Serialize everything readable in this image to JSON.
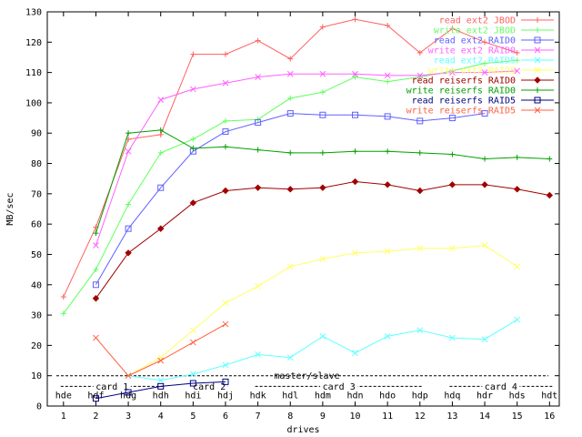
{
  "chart_data": {
    "type": "line",
    "xlabel": "drives",
    "ylabel": "MB/sec",
    "xlim": [
      0.5,
      16.3
    ],
    "ylim": [
      0,
      130
    ],
    "x_ticks": [
      1,
      2,
      3,
      4,
      5,
      6,
      7,
      8,
      9,
      10,
      11,
      12,
      13,
      14,
      15,
      16
    ],
    "y_ticks": [
      0,
      10,
      20,
      30,
      40,
      50,
      60,
      70,
      80,
      90,
      100,
      110,
      120,
      130
    ],
    "grid": false,
    "legend_position": "top-right",
    "top_labels": [
      "hde",
      "hdf",
      "hdg",
      "hdh",
      "hdi",
      "hdj",
      "hdk",
      "hdl",
      "hdm",
      "hdn",
      "hdo",
      "hdp",
      "hdq",
      "hdr",
      "hds",
      "hdt"
    ],
    "annotations": {
      "master_slave": {
        "label": "master/slave",
        "y": 10
      },
      "cards": [
        {
          "label": "card 1",
          "x_from": 1,
          "x_to": 4
        },
        {
          "label": "card 2",
          "x_from": 5,
          "x_to": 6
        },
        {
          "label": "card 3",
          "x_from": 7,
          "x_to": 12
        },
        {
          "label": "card 4",
          "x_from": 13,
          "x_to": 16
        }
      ],
      "card_y": 6.5
    },
    "series": [
      {
        "name": "read ext2 JBOD",
        "color": "#ff6060",
        "marker": "plus",
        "x": [
          1,
          2,
          3,
          4,
          5,
          6,
          7,
          8,
          9,
          10,
          11,
          12,
          13,
          14,
          15
        ],
        "y": [
          36,
          59,
          88,
          89.5,
          116,
          116,
          120.5,
          114.5,
          125,
          127.5,
          125.5,
          116.5,
          124.5,
          120,
          116.5
        ]
      },
      {
        "name": "write ext2 JBOD",
        "color": "#60ff60",
        "marker": "plus",
        "x": [
          1,
          2,
          3,
          4,
          5,
          6,
          7,
          8,
          9,
          10,
          11,
          12,
          13,
          14,
          15
        ],
        "y": [
          30.5,
          45,
          66.5,
          83.5,
          88,
          94,
          94.5,
          101.5,
          103.5,
          108.5,
          107,
          108.5,
          110.5,
          113,
          114
        ]
      },
      {
        "name": "read ext2 RAID0",
        "color": "#6060ff",
        "marker": "square",
        "x": [
          2,
          3,
          4,
          5,
          6,
          7,
          8,
          9,
          10,
          11,
          12,
          13,
          14
        ],
        "y": [
          40,
          58.5,
          72,
          84,
          90.5,
          93.5,
          96.5,
          96,
          96,
          95.5,
          94,
          95,
          96.5
        ]
      },
      {
        "name": "write ext2 RAID0",
        "color": "#ff60ff",
        "marker": "cross",
        "x": [
          2,
          3,
          4,
          5,
          6,
          7,
          8,
          9,
          10,
          11,
          12,
          13,
          14,
          15
        ],
        "y": [
          53,
          84,
          101,
          104.5,
          106.5,
          108.5,
          109.5,
          109.5,
          109.5,
          109,
          109,
          110,
          110,
          110.5
        ]
      },
      {
        "name": "read ext2 RAID5",
        "color": "#60ffff",
        "marker": "cross",
        "x": [
          3,
          4,
          5,
          6,
          7,
          8,
          9,
          10,
          11,
          12,
          13,
          14,
          15
        ],
        "y": [
          10,
          8.5,
          10.5,
          13.5,
          17,
          16,
          23,
          17.5,
          23,
          25,
          22.5,
          22,
          28.5
        ]
      },
      {
        "name": "write ext2 RAID5",
        "color": "#ffff60",
        "marker": "cross",
        "x": [
          3,
          4,
          5,
          6,
          7,
          8,
          9,
          10,
          11,
          12,
          13,
          14,
          15
        ],
        "y": [
          10,
          16,
          25,
          34,
          39.5,
          46,
          48.5,
          50.5,
          51,
          52,
          52,
          53,
          46
        ]
      },
      {
        "name": "read reiserfs RAID0",
        "color": "#a00000",
        "marker": "diamond",
        "x": [
          2,
          3,
          4,
          5,
          6,
          7,
          8,
          9,
          10,
          11,
          12,
          13,
          14,
          15,
          16
        ],
        "y": [
          35.5,
          50.5,
          58.5,
          67,
          71,
          72,
          71.5,
          72,
          74,
          73,
          71,
          73,
          73,
          71.5,
          69.5
        ]
      },
      {
        "name": "write reiserfs RAID0",
        "color": "#00a000",
        "marker": "plus",
        "x": [
          2,
          3,
          4,
          5,
          6,
          7,
          8,
          9,
          10,
          11,
          12,
          13,
          14,
          15,
          16
        ],
        "y": [
          57,
          90,
          91,
          85,
          85.5,
          84.5,
          83.5,
          83.5,
          84,
          84,
          83.5,
          83,
          81.5,
          82,
          81.5
        ]
      },
      {
        "name": "read reiserfs RAID5",
        "color": "#000080",
        "marker": "square",
        "x": [
          2,
          3,
          4,
          5,
          6
        ],
        "y": [
          2.5,
          4.5,
          6.5,
          7.5,
          8
        ]
      },
      {
        "name": "write reiserfs RAID5",
        "color": "#ff6040",
        "marker": "cross",
        "x": [
          2,
          3,
          4,
          5,
          6
        ],
        "y": [
          22.5,
          10,
          15,
          21,
          27
        ]
      }
    ]
  }
}
